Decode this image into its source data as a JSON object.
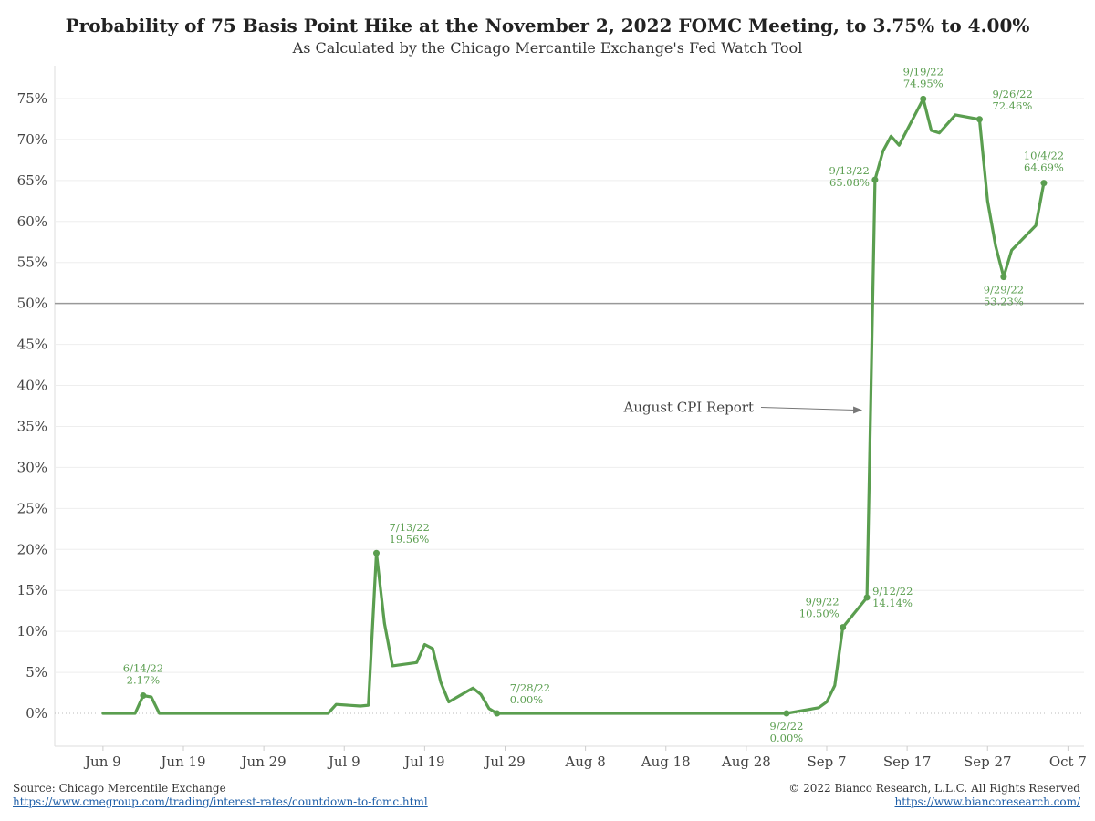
{
  "title": "Probability of 75 Basis Point Hike at the November 2, 2022 FOMC Meeting, to 3.75% to 4.00%",
  "subtitle": "As Calculated by the Chicago Mercantile Exchange's Fed Watch Tool",
  "footer": {
    "source": "Source: Chicago Mercentile Exchange",
    "source_url": "https://www.cmegroup.com/trading/interest-rates/countdown-to-fomc.html",
    "copyright": "© 2022 Bianco Research, L.L.C. All Rights Reserved",
    "site_url": "https://www.biancoresearch.com/"
  },
  "colors": {
    "series": "#5a9e4f",
    "grid": "#eeeeee",
    "refline": "#999999",
    "text": "#444444",
    "arrow": "#777777"
  },
  "chart_data": {
    "type": "line",
    "x_axis": {
      "type": "date",
      "range": [
        "2022-06-03",
        "2022-10-09"
      ],
      "ticks": [
        {
          "date": "2022-06-09",
          "label": "Jun 9"
        },
        {
          "date": "2022-06-19",
          "label": "Jun 19"
        },
        {
          "date": "2022-06-29",
          "label": "Jun 29"
        },
        {
          "date": "2022-07-09",
          "label": "Jul 9"
        },
        {
          "date": "2022-07-19",
          "label": "Jul 19"
        },
        {
          "date": "2022-07-29",
          "label": "Jul 29"
        },
        {
          "date": "2022-08-08",
          "label": "Aug 8"
        },
        {
          "date": "2022-08-18",
          "label": "Aug 18"
        },
        {
          "date": "2022-08-28",
          "label": "Aug 28"
        },
        {
          "date": "2022-09-07",
          "label": "Sep 7"
        },
        {
          "date": "2022-09-17",
          "label": "Sep 17"
        },
        {
          "date": "2022-09-27",
          "label": "Sep 27"
        },
        {
          "date": "2022-10-07",
          "label": "Oct 7"
        }
      ]
    },
    "y_axis": {
      "range": [
        -4,
        79
      ],
      "ticks": [
        0,
        5,
        10,
        15,
        20,
        25,
        30,
        35,
        40,
        45,
        50,
        55,
        60,
        65,
        70,
        75
      ],
      "tick_labels": [
        "0%",
        "5%",
        "10%",
        "15%",
        "20%",
        "25%",
        "30%",
        "35%",
        "40%",
        "45%",
        "50%",
        "55%",
        "60%",
        "65%",
        "70%",
        "75%"
      ]
    },
    "grid": true,
    "reference_line": 50,
    "series": [
      {
        "points": [
          [
            "2022-06-09",
            0
          ],
          [
            "2022-06-10",
            0
          ],
          [
            "2022-06-13",
            0
          ],
          [
            "2022-06-14",
            2.17
          ],
          [
            "2022-06-15",
            2.0
          ],
          [
            "2022-06-16",
            0
          ],
          [
            "2022-06-17",
            0
          ],
          [
            "2022-07-07",
            0
          ],
          [
            "2022-07-08",
            1.1
          ],
          [
            "2022-07-11",
            0.9
          ],
          [
            "2022-07-12",
            1.0
          ],
          [
            "2022-07-13",
            19.56
          ],
          [
            "2022-07-14",
            11.0
          ],
          [
            "2022-07-15",
            5.8
          ],
          [
            "2022-07-18",
            6.2
          ],
          [
            "2022-07-19",
            8.4
          ],
          [
            "2022-07-20",
            7.9
          ],
          [
            "2022-07-21",
            3.8
          ],
          [
            "2022-07-22",
            1.4
          ],
          [
            "2022-07-25",
            3.1
          ],
          [
            "2022-07-26",
            2.3
          ],
          [
            "2022-07-27",
            0.6
          ],
          [
            "2022-07-28",
            0.0
          ],
          [
            "2022-09-02",
            0.0
          ],
          [
            "2022-09-06",
            0.7
          ],
          [
            "2022-09-07",
            1.4
          ],
          [
            "2022-09-08",
            3.4
          ],
          [
            "2022-09-09",
            10.5
          ],
          [
            "2022-09-12",
            14.14
          ],
          [
            "2022-09-13",
            65.08
          ],
          [
            "2022-09-14",
            68.6
          ],
          [
            "2022-09-15",
            70.4
          ],
          [
            "2022-09-16",
            69.3
          ],
          [
            "2022-09-19",
            74.95
          ],
          [
            "2022-09-20",
            71.1
          ],
          [
            "2022-09-21",
            70.8
          ],
          [
            "2022-09-23",
            73.0
          ],
          [
            "2022-09-26",
            72.46
          ],
          [
            "2022-09-27",
            62.5
          ],
          [
            "2022-09-28",
            57.0
          ],
          [
            "2022-09-29",
            53.23
          ],
          [
            "2022-09-30",
            56.5
          ],
          [
            "2022-10-03",
            59.5
          ],
          [
            "2022-10-04",
            64.69
          ]
        ]
      }
    ],
    "labeled_points": [
      {
        "date": "2022-06-14",
        "value": 2.17,
        "date_label": "6/14/22",
        "value_label": "2.17%",
        "pos": "above"
      },
      {
        "date": "2022-07-13",
        "value": 19.56,
        "date_label": "7/13/22",
        "value_label": "19.56%",
        "pos": "above-right"
      },
      {
        "date": "2022-07-28",
        "value": 0.0,
        "date_label": "7/28/22",
        "value_label": "0.00%",
        "pos": "above-right"
      },
      {
        "date": "2022-09-02",
        "value": 0.0,
        "date_label": "9/2/22",
        "value_label": "0.00%",
        "pos": "below"
      },
      {
        "date": "2022-09-09",
        "value": 10.5,
        "date_label": "9/9/22",
        "value_label": "10.50%",
        "pos": "above-left"
      },
      {
        "date": "2022-09-12",
        "value": 14.14,
        "date_label": "9/12/22",
        "value_label": "14.14%",
        "pos": "right"
      },
      {
        "date": "2022-09-13",
        "value": 65.08,
        "date_label": "9/13/22",
        "value_label": "65.08%",
        "pos": "left"
      },
      {
        "date": "2022-09-19",
        "value": 74.95,
        "date_label": "9/19/22",
        "value_label": "74.95%",
        "pos": "above"
      },
      {
        "date": "2022-09-26",
        "value": 72.46,
        "date_label": "9/26/22",
        "value_label": "72.46%",
        "pos": "above-right"
      },
      {
        "date": "2022-09-29",
        "value": 53.23,
        "date_label": "9/29/22",
        "value_label": "53.23%",
        "pos": "below"
      },
      {
        "date": "2022-10-04",
        "value": 64.69,
        "date_label": "10/4/22",
        "value_label": "64.69%",
        "pos": "above"
      }
    ],
    "annotations": [
      {
        "text": "August CPI Report",
        "arrow_to_date": "2022-09-12",
        "arrow_to_value": 37
      }
    ]
  }
}
